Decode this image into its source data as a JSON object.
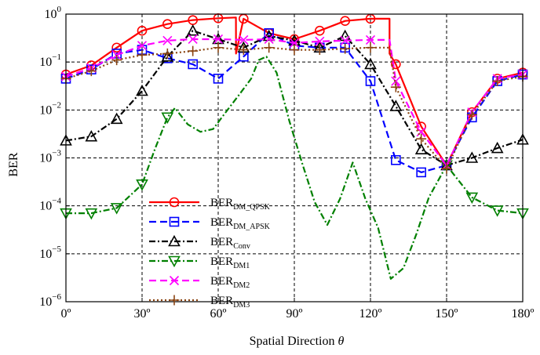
{
  "chart_data": {
    "type": "line",
    "xlabel": "Spatial Direction",
    "xlabel_symbol": "θ",
    "ylabel": "BER",
    "x_scale": "linear",
    "y_scale": "log",
    "xlim": [
      0,
      180
    ],
    "ylim": [
      1e-06,
      1
    ],
    "grid": true,
    "legend_position": "left",
    "x_ticks": [
      {
        "value": 0,
        "label": "0º"
      },
      {
        "value": 30,
        "label": "30º"
      },
      {
        "value": 60,
        "label": "60º"
      },
      {
        "value": 90,
        "label": "90º"
      },
      {
        "value": 120,
        "label": "120º"
      },
      {
        "value": 150,
        "label": "150º"
      },
      {
        "value": 180,
        "label": "180º"
      }
    ],
    "y_ticks": [
      {
        "value": 1e-06,
        "base": "10",
        "exp": "−6"
      },
      {
        "value": 1e-05,
        "base": "10",
        "exp": "−5"
      },
      {
        "value": 0.0001,
        "base": "10",
        "exp": "−4"
      },
      {
        "value": 0.001,
        "base": "10",
        "exp": "−3"
      },
      {
        "value": 0.01,
        "base": "10",
        "exp": "−2"
      },
      {
        "value": 0.1,
        "base": "10",
        "exp": "−1"
      },
      {
        "value": 1,
        "base": "10",
        "exp": "0"
      }
    ],
    "series": [
      {
        "name": "BER",
        "subscript": "DM_QPSK",
        "color": "#ff0000",
        "dash": "",
        "marker": "circle",
        "x": [
          0,
          10,
          20,
          30,
          40,
          50,
          60,
          67,
          67.01,
          70,
          80,
          90,
          100,
          110,
          120,
          127.5,
          127.51,
          130,
          140,
          150,
          160,
          170,
          180
        ],
        "y": [
          0.055,
          0.085,
          0.2,
          0.45,
          0.62,
          0.75,
          0.82,
          0.85,
          0.15,
          0.8,
          0.4,
          0.3,
          0.45,
          0.72,
          0.8,
          0.8,
          0.15,
          0.09,
          0.0045,
          0.0007,
          0.009,
          0.045,
          0.06
        ]
      },
      {
        "name": "BER",
        "subscript": "DM_APSK",
        "color": "#0000ff",
        "dash": "9 5",
        "marker": "square",
        "x": [
          0,
          10,
          20,
          30,
          40,
          50,
          60,
          70,
          80,
          90,
          100,
          110,
          120,
          130,
          140,
          150,
          160,
          170,
          180
        ],
        "y": [
          0.045,
          0.07,
          0.15,
          0.18,
          0.12,
          0.09,
          0.045,
          0.13,
          0.4,
          0.22,
          0.2,
          0.2,
          0.04,
          0.0009,
          0.0005,
          0.0007,
          0.007,
          0.04,
          0.055
        ]
      },
      {
        "name": "BER",
        "subscript": "Conv",
        "color": "#000000",
        "dash": "8 3 2 3",
        "marker": "triangle-up",
        "x": [
          0,
          10,
          20,
          30,
          40,
          50,
          60,
          70,
          80,
          90,
          100,
          110,
          120,
          130,
          140,
          150,
          160,
          170,
          180
        ],
        "y": [
          0.0023,
          0.0028,
          0.0065,
          0.025,
          0.13,
          0.45,
          0.3,
          0.2,
          0.35,
          0.28,
          0.2,
          0.35,
          0.09,
          0.012,
          0.0015,
          0.0007,
          0.001,
          0.0016,
          0.0024
        ]
      },
      {
        "name": "BER",
        "subscript": "DM1",
        "color": "#008000",
        "dash": "8 3 2 3",
        "marker": "triangle-down",
        "x": [
          0,
          10,
          20,
          30,
          35,
          40,
          43,
          48,
          53,
          58,
          63,
          68,
          73,
          76,
          79,
          83,
          88,
          93,
          98,
          103,
          108,
          113,
          118,
          123,
          128,
          133,
          138,
          143,
          150,
          160,
          170,
          180
        ],
        "y": [
          7e-05,
          7e-05,
          9e-05,
          0.00028,
          0.0015,
          0.007,
          0.011,
          0.005,
          0.0035,
          0.004,
          0.009,
          0.02,
          0.045,
          0.11,
          0.13,
          0.06,
          0.006,
          0.0008,
          0.00012,
          4e-05,
          0.00014,
          0.0008,
          0.00014,
          3.5e-05,
          3e-06,
          5e-06,
          2.5e-05,
          0.00015,
          0.0007,
          0.00015,
          8e-05,
          7e-05
        ]
      },
      {
        "name": "BER",
        "subscript": "DM2",
        "color": "#ff00ff",
        "dash": "9 5",
        "marker": "x",
        "x": [
          0,
          10,
          20,
          30,
          40,
          50,
          60,
          70,
          80,
          90,
          100,
          110,
          120,
          127.5,
          130,
          140,
          150,
          160,
          170,
          180
        ],
        "y": [
          0.05,
          0.075,
          0.14,
          0.22,
          0.28,
          0.3,
          0.3,
          0.29,
          0.3,
          0.25,
          0.27,
          0.28,
          0.29,
          0.29,
          0.04,
          0.0035,
          0.0007,
          0.009,
          0.045,
          0.055
        ]
      },
      {
        "name": "BER",
        "subscript": "DM3",
        "color": "#8b4513",
        "dash": "2 3",
        "marker": "plus",
        "x": [
          0,
          10,
          20,
          30,
          40,
          50,
          60,
          70,
          80,
          90,
          100,
          110,
          120,
          127.5,
          130,
          140,
          150,
          160,
          170,
          180
        ],
        "y": [
          0.045,
          0.065,
          0.11,
          0.14,
          0.15,
          0.17,
          0.2,
          0.18,
          0.2,
          0.18,
          0.18,
          0.19,
          0.2,
          0.2,
          0.03,
          0.0025,
          0.0006,
          0.008,
          0.04,
          0.05
        ]
      }
    ]
  }
}
